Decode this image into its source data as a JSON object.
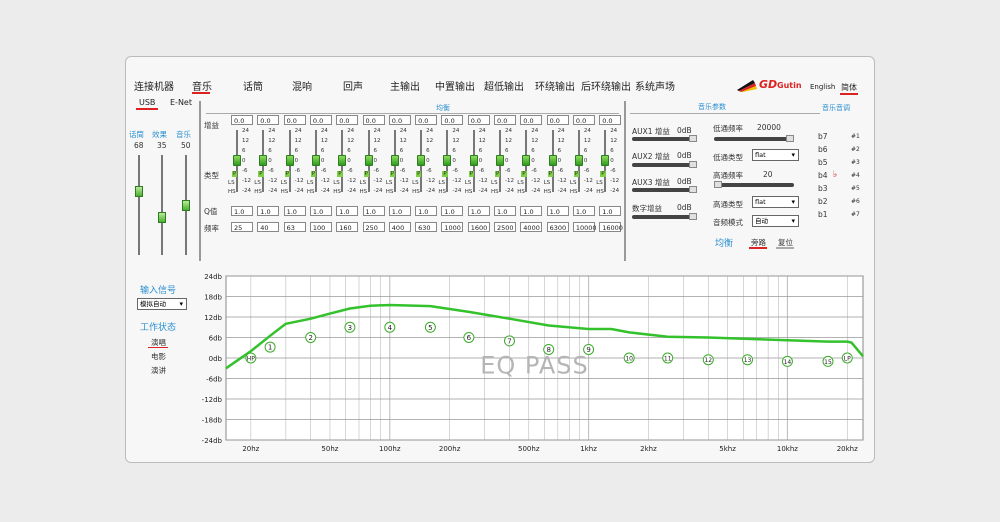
{
  "nav": {
    "items": [
      "连接机器",
      "音乐",
      "话筒",
      "混响",
      "回声",
      "主输出",
      "中置输出",
      "超低输出",
      "环绕输出",
      "后环绕输出",
      "系统声场"
    ],
    "active_index": 1,
    "brand_short": "GD",
    "brand_name": "Gutin",
    "lang_en": "English",
    "lang_cn": "简体"
  },
  "conn": {
    "usb": "USB",
    "enet": "E-Net"
  },
  "levels": {
    "labels": [
      "话筒",
      "效果",
      "音乐"
    ],
    "values": [
      "68",
      "35",
      "50"
    ],
    "fractions": [
      0.68,
      0.35,
      0.5
    ]
  },
  "input": {
    "title": "输入信号",
    "select": "模拟自动"
  },
  "work": {
    "title": "工作状态",
    "modes": [
      "演唱",
      "电影",
      "演讲"
    ],
    "active_index": 0
  },
  "eq": {
    "title": "均衡",
    "row_gain": "增益",
    "row_type": "类型",
    "row_q": "Q值",
    "row_freq": "频率",
    "scale": [
      "24",
      "12",
      "6",
      "0",
      "-6",
      "-12",
      "-24"
    ],
    "types": [
      "P",
      "LS",
      "HS"
    ],
    "gains": [
      "0.0",
      "0.0",
      "0.0",
      "0.0",
      "0.0",
      "0.0",
      "0.0",
      "0.0",
      "0.0",
      "0.0",
      "0.0",
      "0.0",
      "0.0",
      "0.0",
      "0.0"
    ],
    "qs": [
      "1.0",
      "1.0",
      "1.0",
      "1.0",
      "1.0",
      "1.0",
      "1.0",
      "1.0",
      "1.0",
      "1.0",
      "1.0",
      "1.0",
      "1.0",
      "1.0",
      "1.0"
    ],
    "freqs": [
      "25",
      "40",
      "63",
      "100",
      "160",
      "250",
      "400",
      "630",
      "1000",
      "1600",
      "2500",
      "4000",
      "6300",
      "10000",
      "16000"
    ]
  },
  "params": {
    "title": "音乐参数",
    "aux1": {
      "label": "AUX1 增益",
      "value": "0dB"
    },
    "aux2": {
      "label": "AUX2 增益",
      "value": "0dB"
    },
    "aux3": {
      "label": "AUX3 增益",
      "value": "0dB"
    },
    "digital": {
      "label": "数字增益",
      "value": "0dB"
    },
    "lpf_freq": {
      "label": "低通频率",
      "value": "20000"
    },
    "lpf_type": {
      "label": "低通类型",
      "value": "flat"
    },
    "hpf_freq": {
      "label": "高通频率",
      "value": "20"
    },
    "hpf_type": {
      "label": "高通类型",
      "value": "flat"
    },
    "audio_mode": {
      "label": "音频模式",
      "value": "自动"
    },
    "eq_label": "均衡",
    "bypass": "旁路",
    "reset": "复位"
  },
  "pitch": {
    "title": "音乐音调",
    "flats": [
      "b7",
      "b6",
      "b5",
      "b4",
      "b3",
      "b2",
      "b1"
    ],
    "sharps": [
      "#1",
      "#2",
      "#3",
      "#4",
      "#5",
      "#6",
      "#7"
    ],
    "current_index": 3
  },
  "chart_data": {
    "type": "line",
    "title": "EQ PASS",
    "xlabel": "",
    "ylabel": "",
    "x_scale": "log",
    "xlim": [
      15,
      24000
    ],
    "ylim": [
      -24,
      24
    ],
    "y_ticks": [
      "24db",
      "18db",
      "12db",
      "6db",
      "0db",
      "-6db",
      "-12db",
      "-18db",
      "-24db"
    ],
    "x_ticks": [
      {
        "hz": 20,
        "label": "20hz"
      },
      {
        "hz": 50,
        "label": "50hz"
      },
      {
        "hz": 100,
        "label": "100hz"
      },
      {
        "hz": 200,
        "label": "200hz"
      },
      {
        "hz": 500,
        "label": "500hz"
      },
      {
        "hz": 1000,
        "label": "1khz"
      },
      {
        "hz": 2000,
        "label": "2khz"
      },
      {
        "hz": 5000,
        "label": "5khz"
      },
      {
        "hz": 10000,
        "label": "10khz"
      },
      {
        "hz": 20000,
        "label": "20khz"
      }
    ],
    "curve": {
      "color": "#33c12c",
      "points": [
        [
          15,
          -3
        ],
        [
          20,
          2
        ],
        [
          25,
          6.5
        ],
        [
          30,
          10
        ],
        [
          40,
          11.5
        ],
        [
          50,
          13
        ],
        [
          63,
          14.5
        ],
        [
          80,
          15.3
        ],
        [
          100,
          15.5
        ],
        [
          160,
          15.2
        ],
        [
          250,
          13.5
        ],
        [
          400,
          11.5
        ],
        [
          630,
          9.5
        ],
        [
          1000,
          8.5
        ],
        [
          1300,
          8.5
        ],
        [
          1600,
          7.5
        ],
        [
          2500,
          6.2
        ],
        [
          4000,
          6
        ],
        [
          6300,
          5.6
        ],
        [
          10000,
          5.2
        ],
        [
          16000,
          4.8
        ],
        [
          20000,
          4.8
        ],
        [
          21000,
          4.5
        ],
        [
          24000,
          0.5
        ]
      ]
    },
    "markers": [
      {
        "label": "HP",
        "hz": 20,
        "db": 0
      },
      {
        "label": "1",
        "hz": 25,
        "db": 3.2
      },
      {
        "label": "2",
        "hz": 40,
        "db": 6
      },
      {
        "label": "3",
        "hz": 63,
        "db": 9
      },
      {
        "label": "4",
        "hz": 100,
        "db": 9
      },
      {
        "label": "5",
        "hz": 160,
        "db": 9
      },
      {
        "label": "6",
        "hz": 250,
        "db": 6
      },
      {
        "label": "7",
        "hz": 400,
        "db": 5
      },
      {
        "label": "8",
        "hz": 630,
        "db": 2.5
      },
      {
        "label": "9",
        "hz": 1000,
        "db": 2.5
      },
      {
        "label": "10",
        "hz": 1600,
        "db": 0
      },
      {
        "label": "11",
        "hz": 2500,
        "db": 0
      },
      {
        "label": "12",
        "hz": 4000,
        "db": -0.5
      },
      {
        "label": "13",
        "hz": 6300,
        "db": -0.5
      },
      {
        "label": "14",
        "hz": 10000,
        "db": -1
      },
      {
        "label": "15",
        "hz": 16000,
        "db": -1
      },
      {
        "label": "LP",
        "hz": 20000,
        "db": 0
      }
    ],
    "grid": true
  }
}
